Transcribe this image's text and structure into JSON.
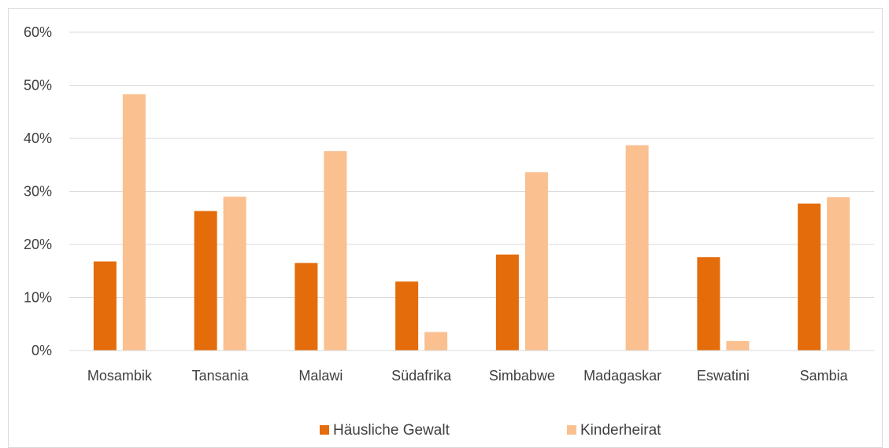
{
  "chart_data": {
    "type": "bar",
    "title": "",
    "xlabel": "",
    "ylabel": "",
    "ylim": [
      0,
      60
    ],
    "yticks": [
      "0%",
      "10%",
      "20%",
      "30%",
      "40%",
      "50%",
      "60%"
    ],
    "grid": true,
    "legend_position": "bottom",
    "categories": [
      "Mosambik",
      "Tansania",
      "Malawi",
      "Südafrika",
      "Simbabwe",
      "Madagaskar",
      "Eswatini",
      "Sambia"
    ],
    "series": [
      {
        "name": "Häusliche Gewalt",
        "color": "#E46C0A",
        "values": [
          16.8,
          26.3,
          16.5,
          13.0,
          18.1,
          null,
          17.6,
          27.7
        ]
      },
      {
        "name": "Kinderheirat",
        "color": "#FAC090",
        "values": [
          48.3,
          29.0,
          37.6,
          3.5,
          33.6,
          38.7,
          1.8,
          28.9
        ]
      }
    ]
  }
}
